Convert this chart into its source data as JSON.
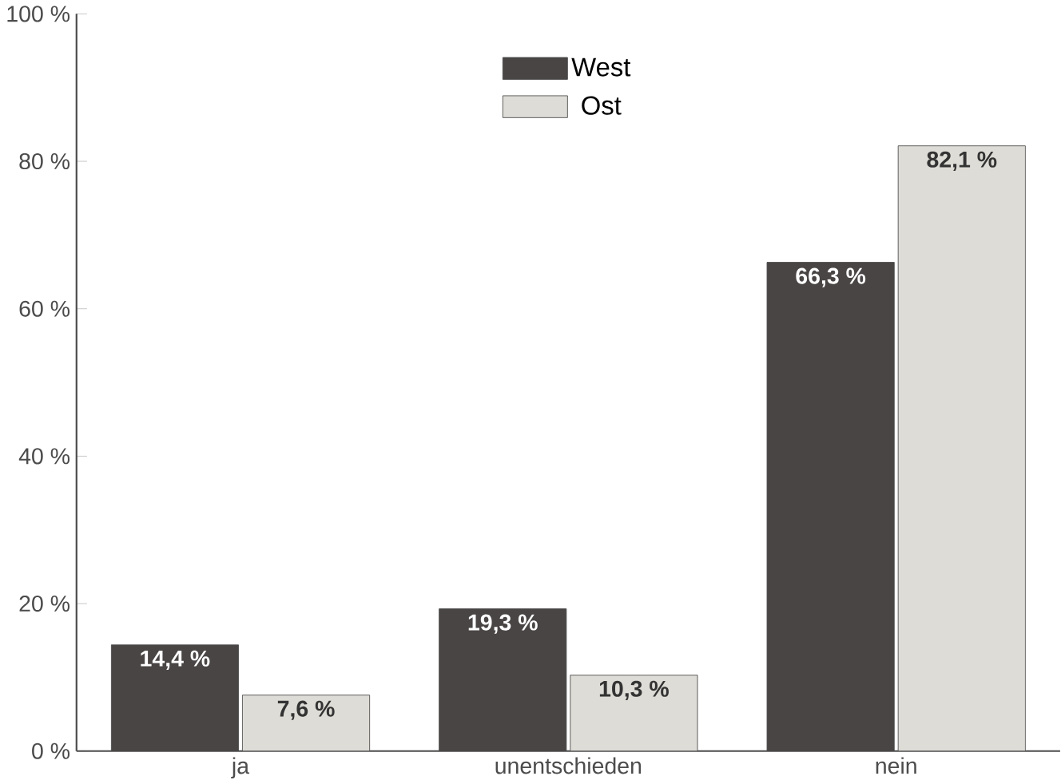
{
  "chart_data": {
    "type": "bar",
    "categories": [
      "ja",
      "unentschieden",
      "nein"
    ],
    "series": [
      {
        "name": "West",
        "color": "#4a4545",
        "values": [
          14.4,
          19.3,
          66.3
        ],
        "value_labels": [
          "14,4 %",
          "19,3 %",
          "66,3 %"
        ]
      },
      {
        "name": "Ost",
        "color": "#dedcd6",
        "values": [
          7.6,
          10.3,
          82.1
        ],
        "value_labels": [
          "7,6 %",
          "10,3 %",
          "82,1 %"
        ]
      }
    ],
    "ylim": [
      0,
      100
    ],
    "yticks": [
      {
        "value": 0,
        "label": "0 %"
      },
      {
        "value": 20,
        "label": "20 %"
      },
      {
        "value": 40,
        "label": "40 %"
      },
      {
        "value": 60,
        "label": "60 %"
      },
      {
        "value": 80,
        "label": "80 %"
      },
      {
        "value": 100,
        "label": "100 %"
      }
    ],
    "legend": "top",
    "grid": false
  }
}
